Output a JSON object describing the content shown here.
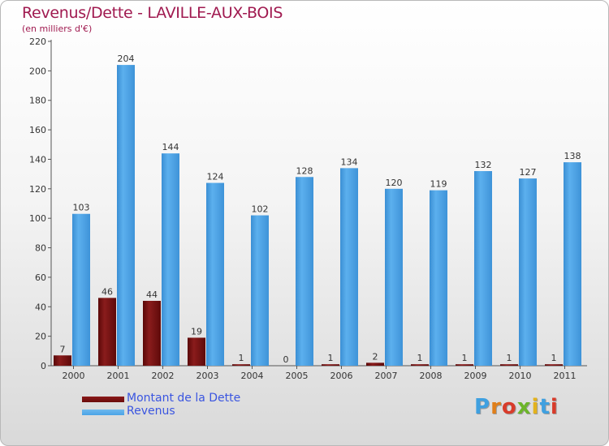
{
  "title": "Revenus/Dette - LAVILLE-AUX-BOIS",
  "subtitle": "(en milliers d'€)",
  "logo": {
    "text": "Proxiti",
    "colors": [
      "#3fa0e0",
      "#e07f1a",
      "#d83b2a",
      "#6cb52a",
      "#e3b21c",
      "#3fa0e0",
      "#d83b2a"
    ]
  },
  "colors": {
    "dette": "#6b0b0b",
    "revenus": "#4aa3e6",
    "title": "#a01a50",
    "legend_text": "#3a55e0"
  },
  "chart_data": {
    "type": "bar",
    "title": "Revenus/Dette - LAVILLE-AUX-BOIS",
    "ylabel": "(en milliers d'€)",
    "xlabel": "",
    "categories": [
      "2000",
      "2001",
      "2002",
      "2003",
      "2004",
      "2005",
      "2006",
      "2007",
      "2008",
      "2009",
      "2010",
      "2011"
    ],
    "series": [
      {
        "name": "Montant de la Dette",
        "values": [
          7,
          46,
          44,
          19,
          1,
          0,
          1,
          2,
          1,
          1,
          1,
          1
        ]
      },
      {
        "name": "Revenus",
        "values": [
          103,
          204,
          144,
          124,
          102,
          128,
          134,
          120,
          119,
          132,
          127,
          138
        ]
      }
    ],
    "ylim": [
      0,
      220
    ],
    "yticks": [
      0,
      20,
      40,
      60,
      80,
      100,
      120,
      140,
      160,
      180,
      200,
      220
    ],
    "grid": false,
    "legend": "bottom-left"
  }
}
